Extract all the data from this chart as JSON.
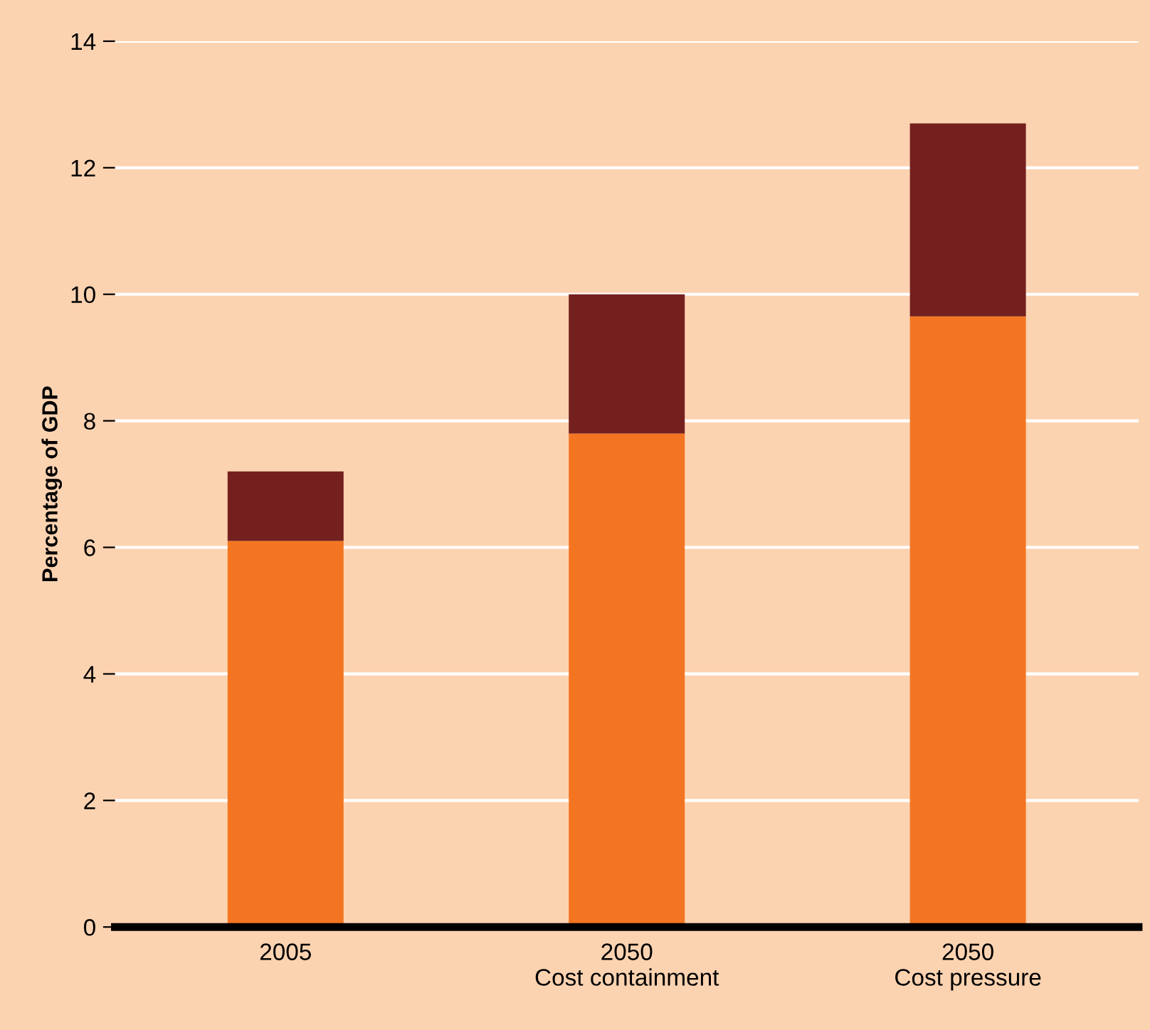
{
  "chart_data": {
    "type": "bar",
    "stacked": true,
    "ylabel": "Percentage of GDP",
    "categories": [
      "2005",
      "2050\nCost containment",
      "2050\nCost pressure"
    ],
    "series": [
      {
        "color": "#f47521",
        "values": [
          6.1,
          7.8,
          9.65
        ]
      },
      {
        "color": "#74201f",
        "values": [
          1.1,
          2.2,
          3.05
        ]
      }
    ],
    "ylim": [
      0,
      14
    ],
    "yticks": [
      0,
      2,
      4,
      6,
      8,
      10,
      12,
      14
    ],
    "grid": "y",
    "legend": false
  }
}
